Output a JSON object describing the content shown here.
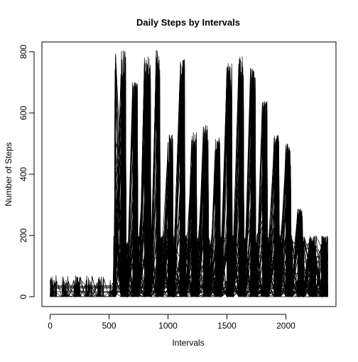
{
  "chart_data": {
    "type": "line",
    "title": "Daily Steps by Intervals",
    "xlabel": "Intervals",
    "ylabel": "Number of Steps",
    "xlim": [
      -70,
      2425
    ],
    "ylim": [
      -32,
      832
    ],
    "xticks": [
      0,
      500,
      1000,
      1500,
      2000
    ],
    "yticks": [
      0,
      200,
      400,
      600,
      800
    ],
    "grid": false,
    "legend": "none",
    "line_color": "#000000",
    "interval_range": [
      0,
      2355
    ],
    "series_count": 61,
    "max_steps": 806,
    "active_bands": [
      {
        "start": 550,
        "end": 640,
        "peak": 805
      },
      {
        "start": 700,
        "end": 740,
        "peak": 700
      },
      {
        "start": 800,
        "end": 850,
        "peak": 786
      },
      {
        "start": 900,
        "end": 930,
        "peak": 806
      },
      {
        "start": 1000,
        "end": 1040,
        "peak": 530
      },
      {
        "start": 1100,
        "end": 1140,
        "peak": 783
      },
      {
        "start": 1200,
        "end": 1240,
        "peak": 540
      },
      {
        "start": 1300,
        "end": 1340,
        "peak": 560
      },
      {
        "start": 1400,
        "end": 1440,
        "peak": 520
      },
      {
        "start": 1500,
        "end": 1540,
        "peak": 770
      },
      {
        "start": 1600,
        "end": 1640,
        "peak": 785
      },
      {
        "start": 1700,
        "end": 1740,
        "peak": 750
      },
      {
        "start": 1800,
        "end": 1840,
        "peak": 640
      },
      {
        "start": 1900,
        "end": 1940,
        "peak": 530
      },
      {
        "start": 2000,
        "end": 2040,
        "peak": 500
      },
      {
        "start": 2100,
        "end": 2140,
        "peak": 290
      },
      {
        "start": 2200,
        "end": 2240,
        "peak": 180
      }
    ]
  }
}
